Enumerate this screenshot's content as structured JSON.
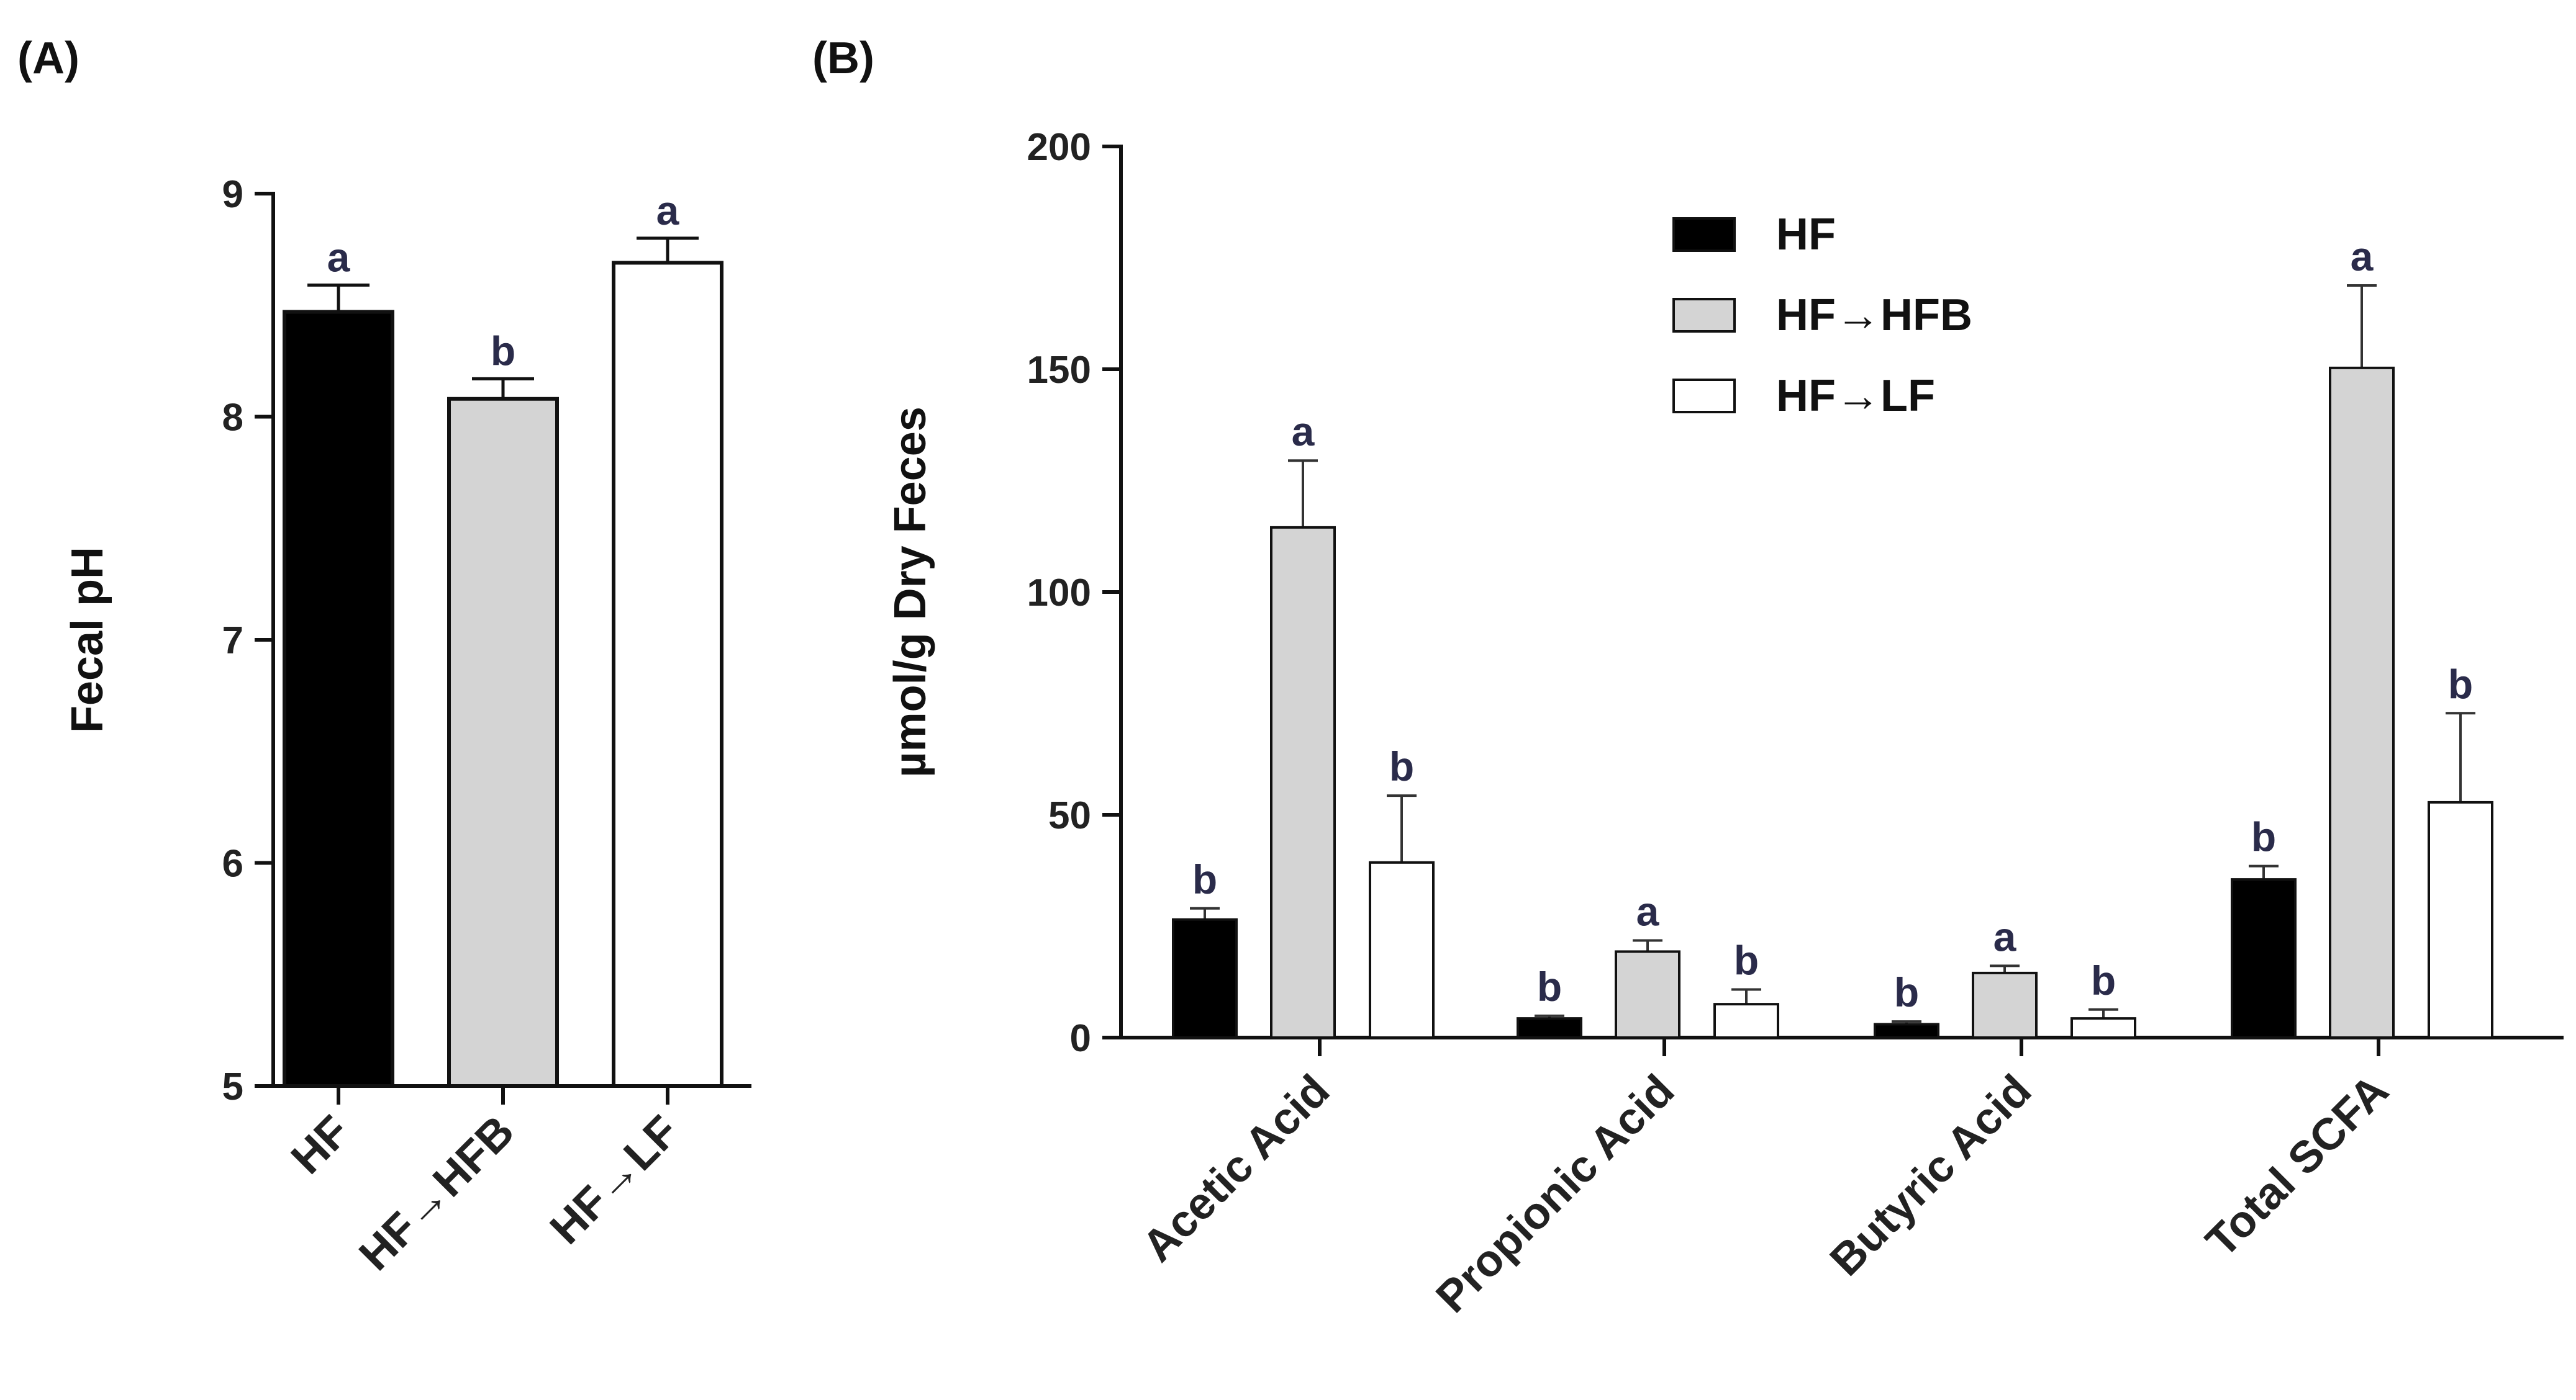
{
  "chart_data": [
    {
      "panel_label": "(A)",
      "type": "bar",
      "title": "",
      "xlabel": "",
      "ylabel": "Fecal pH",
      "ylim": [
        5,
        9
      ],
      "yticks": [
        5,
        6,
        7,
        8,
        9
      ],
      "categories": [
        "HF",
        "HF→HFB",
        "HF→LF"
      ],
      "values": [
        8.47,
        8.08,
        8.69
      ],
      "errors": [
        0.12,
        0.09,
        0.11
      ],
      "significance": [
        "a",
        "b",
        "a"
      ],
      "fills": [
        "#000000",
        "#d4d4d4",
        "#ffffff"
      ]
    },
    {
      "panel_label": "(B)",
      "type": "bar",
      "title": "",
      "xlabel": "",
      "ylabel": "µmol/g Dry Feces",
      "ylim": [
        0,
        200
      ],
      "yticks": [
        0,
        50,
        100,
        150,
        200
      ],
      "categories": [
        "Acetic Acid",
        "Propionic Acid",
        "Butyric Acid",
        "Total SCFA"
      ],
      "legend_position": "top-center",
      "series": [
        {
          "name": "HF",
          "color": "#000000",
          "values": [
            26.5,
            4.3,
            3.0,
            35.5
          ],
          "errors": [
            2.5,
            0.6,
            0.6,
            3.0
          ],
          "significance": [
            "b",
            "b",
            "b",
            "b"
          ]
        },
        {
          "name": "HF→HFB",
          "color": "#d4d4d4",
          "values": [
            114.5,
            19.3,
            14.5,
            150.3
          ],
          "errors": [
            15.0,
            2.5,
            1.6,
            18.5
          ],
          "significance": [
            "a",
            "a",
            "a",
            "a"
          ]
        },
        {
          "name": "HF→LF",
          "color": "#ffffff",
          "values": [
            39.3,
            7.5,
            4.3,
            52.8
          ],
          "errors": [
            15.0,
            3.3,
            2.0,
            20.0
          ],
          "significance": [
            "b",
            "b",
            "b",
            "b"
          ]
        }
      ]
    }
  ]
}
